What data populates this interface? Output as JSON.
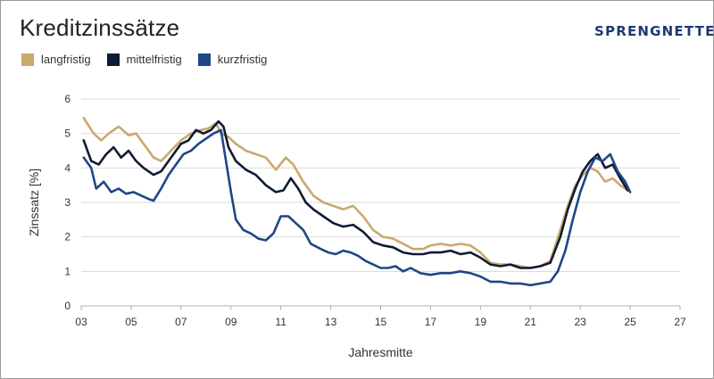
{
  "title": "Kreditzinssätze",
  "brand": "SPRENGNETTER",
  "colors": {
    "langfristig": "#c9a96e",
    "mittelfristig": "#0f1b33",
    "kurzfristig": "#1f4687",
    "grid": "#d9d9d9",
    "axis": "#b0b0b0"
  },
  "chart_data": {
    "type": "line",
    "title": "Kreditzinssätze",
    "xlabel": "Jahresmitte",
    "ylabel": "Zinssatz [%]",
    "xlim": [
      3,
      27
    ],
    "ylim": [
      0,
      6
    ],
    "xticks": [
      "03",
      "05",
      "07",
      "09",
      "11",
      "13",
      "15",
      "17",
      "19",
      "21",
      "23",
      "25",
      "27"
    ],
    "yticks": [
      "0",
      "1",
      "2",
      "3",
      "4",
      "5",
      "6"
    ],
    "grid": "horizontal",
    "legend_position": "top-left",
    "series": [
      {
        "name": "langfristig",
        "color": "#c9a96e",
        "points": [
          [
            3.1,
            5.45
          ],
          [
            3.5,
            5.0
          ],
          [
            3.8,
            4.8
          ],
          [
            4.1,
            5.0
          ],
          [
            4.5,
            5.2
          ],
          [
            4.9,
            4.95
          ],
          [
            5.2,
            5.0
          ],
          [
            5.5,
            4.7
          ],
          [
            5.9,
            4.3
          ],
          [
            6.2,
            4.2
          ],
          [
            6.6,
            4.5
          ],
          [
            7.0,
            4.8
          ],
          [
            7.4,
            5.0
          ],
          [
            7.8,
            5.1
          ],
          [
            8.1,
            5.15
          ],
          [
            8.4,
            5.3
          ],
          [
            8.6,
            5.0
          ],
          [
            8.9,
            4.9
          ],
          [
            9.2,
            4.7
          ],
          [
            9.6,
            4.5
          ],
          [
            10.0,
            4.4
          ],
          [
            10.4,
            4.3
          ],
          [
            10.8,
            3.95
          ],
          [
            11.2,
            4.3
          ],
          [
            11.5,
            4.1
          ],
          [
            11.9,
            3.6
          ],
          [
            12.3,
            3.2
          ],
          [
            12.7,
            3.0
          ],
          [
            13.1,
            2.9
          ],
          [
            13.5,
            2.8
          ],
          [
            13.9,
            2.9
          ],
          [
            14.3,
            2.6
          ],
          [
            14.7,
            2.2
          ],
          [
            15.1,
            2.0
          ],
          [
            15.5,
            1.95
          ],
          [
            15.9,
            1.8
          ],
          [
            16.3,
            1.65
          ],
          [
            16.7,
            1.65
          ],
          [
            17.0,
            1.75
          ],
          [
            17.4,
            1.8
          ],
          [
            17.8,
            1.75
          ],
          [
            18.2,
            1.8
          ],
          [
            18.6,
            1.75
          ],
          [
            19.0,
            1.55
          ],
          [
            19.4,
            1.25
          ],
          [
            19.8,
            1.2
          ],
          [
            20.2,
            1.2
          ],
          [
            20.6,
            1.15
          ],
          [
            21.0,
            1.1
          ],
          [
            21.4,
            1.15
          ],
          [
            21.8,
            1.3
          ],
          [
            22.2,
            2.2
          ],
          [
            22.5,
            2.9
          ],
          [
            22.8,
            3.5
          ],
          [
            23.1,
            3.8
          ],
          [
            23.4,
            4.0
          ],
          [
            23.7,
            3.9
          ],
          [
            24.0,
            3.6
          ],
          [
            24.3,
            3.7
          ],
          [
            24.6,
            3.5
          ],
          [
            24.9,
            3.35
          ]
        ]
      },
      {
        "name": "mittelfristig",
        "color": "#0f1b33",
        "points": [
          [
            3.1,
            4.8
          ],
          [
            3.4,
            4.2
          ],
          [
            3.7,
            4.1
          ],
          [
            4.0,
            4.4
          ],
          [
            4.3,
            4.6
          ],
          [
            4.6,
            4.3
          ],
          [
            4.9,
            4.5
          ],
          [
            5.2,
            4.2
          ],
          [
            5.5,
            4.0
          ],
          [
            5.9,
            3.8
          ],
          [
            6.2,
            3.9
          ],
          [
            6.6,
            4.3
          ],
          [
            7.0,
            4.7
          ],
          [
            7.3,
            4.8
          ],
          [
            7.6,
            5.1
          ],
          [
            7.9,
            5.0
          ],
          [
            8.2,
            5.1
          ],
          [
            8.5,
            5.35
          ],
          [
            8.7,
            5.2
          ],
          [
            8.9,
            4.6
          ],
          [
            9.2,
            4.2
          ],
          [
            9.6,
            3.95
          ],
          [
            10.0,
            3.8
          ],
          [
            10.4,
            3.5
          ],
          [
            10.8,
            3.3
          ],
          [
            11.1,
            3.35
          ],
          [
            11.4,
            3.7
          ],
          [
            11.7,
            3.4
          ],
          [
            12.0,
            3.0
          ],
          [
            12.3,
            2.8
          ],
          [
            12.7,
            2.6
          ],
          [
            13.1,
            2.4
          ],
          [
            13.5,
            2.3
          ],
          [
            13.9,
            2.35
          ],
          [
            14.3,
            2.15
          ],
          [
            14.7,
            1.85
          ],
          [
            15.1,
            1.75
          ],
          [
            15.5,
            1.7
          ],
          [
            15.9,
            1.55
          ],
          [
            16.3,
            1.5
          ],
          [
            16.7,
            1.5
          ],
          [
            17.0,
            1.55
          ],
          [
            17.4,
            1.55
          ],
          [
            17.8,
            1.6
          ],
          [
            18.2,
            1.5
          ],
          [
            18.6,
            1.55
          ],
          [
            19.0,
            1.4
          ],
          [
            19.4,
            1.2
          ],
          [
            19.8,
            1.15
          ],
          [
            20.2,
            1.2
          ],
          [
            20.6,
            1.1
          ],
          [
            21.0,
            1.1
          ],
          [
            21.4,
            1.15
          ],
          [
            21.8,
            1.25
          ],
          [
            22.2,
            2.0
          ],
          [
            22.5,
            2.8
          ],
          [
            22.8,
            3.4
          ],
          [
            23.1,
            3.9
          ],
          [
            23.4,
            4.2
          ],
          [
            23.7,
            4.4
          ],
          [
            24.0,
            4.0
          ],
          [
            24.3,
            4.1
          ],
          [
            24.6,
            3.7
          ],
          [
            24.9,
            3.35
          ]
        ]
      },
      {
        "name": "kurzfristig",
        "color": "#1f4687",
        "points": [
          [
            3.1,
            4.3
          ],
          [
            3.4,
            4.0
          ],
          [
            3.6,
            3.4
          ],
          [
            3.9,
            3.6
          ],
          [
            4.2,
            3.3
          ],
          [
            4.5,
            3.4
          ],
          [
            4.8,
            3.25
          ],
          [
            5.1,
            3.3
          ],
          [
            5.4,
            3.2
          ],
          [
            5.7,
            3.1
          ],
          [
            5.9,
            3.05
          ],
          [
            6.2,
            3.4
          ],
          [
            6.5,
            3.8
          ],
          [
            6.8,
            4.1
          ],
          [
            7.1,
            4.4
          ],
          [
            7.4,
            4.5
          ],
          [
            7.7,
            4.7
          ],
          [
            8.0,
            4.85
          ],
          [
            8.3,
            5.0
          ],
          [
            8.6,
            5.1
          ],
          [
            8.8,
            4.2
          ],
          [
            9.0,
            3.3
          ],
          [
            9.2,
            2.5
          ],
          [
            9.5,
            2.2
          ],
          [
            9.8,
            2.1
          ],
          [
            10.1,
            1.95
          ],
          [
            10.4,
            1.9
          ],
          [
            10.7,
            2.1
          ],
          [
            11.0,
            2.6
          ],
          [
            11.3,
            2.6
          ],
          [
            11.6,
            2.4
          ],
          [
            11.9,
            2.2
          ],
          [
            12.2,
            1.8
          ],
          [
            12.6,
            1.65
          ],
          [
            12.9,
            1.55
          ],
          [
            13.2,
            1.5
          ],
          [
            13.5,
            1.6
          ],
          [
            13.8,
            1.55
          ],
          [
            14.1,
            1.45
          ],
          [
            14.4,
            1.3
          ],
          [
            14.7,
            1.2
          ],
          [
            15.0,
            1.1
          ],
          [
            15.3,
            1.1
          ],
          [
            15.6,
            1.15
          ],
          [
            15.9,
            1.0
          ],
          [
            16.2,
            1.1
          ],
          [
            16.6,
            0.95
          ],
          [
            17.0,
            0.9
          ],
          [
            17.4,
            0.95
          ],
          [
            17.8,
            0.95
          ],
          [
            18.2,
            1.0
          ],
          [
            18.6,
            0.95
          ],
          [
            19.0,
            0.85
          ],
          [
            19.4,
            0.7
          ],
          [
            19.8,
            0.7
          ],
          [
            20.2,
            0.65
          ],
          [
            20.6,
            0.65
          ],
          [
            21.0,
            0.6
          ],
          [
            21.4,
            0.65
          ],
          [
            21.8,
            0.7
          ],
          [
            22.1,
            1.0
          ],
          [
            22.4,
            1.6
          ],
          [
            22.7,
            2.5
          ],
          [
            23.0,
            3.3
          ],
          [
            23.3,
            3.9
          ],
          [
            23.6,
            4.3
          ],
          [
            23.9,
            4.2
          ],
          [
            24.2,
            4.4
          ],
          [
            24.5,
            3.9
          ],
          [
            24.8,
            3.6
          ],
          [
            25.0,
            3.3
          ]
        ]
      }
    ]
  }
}
